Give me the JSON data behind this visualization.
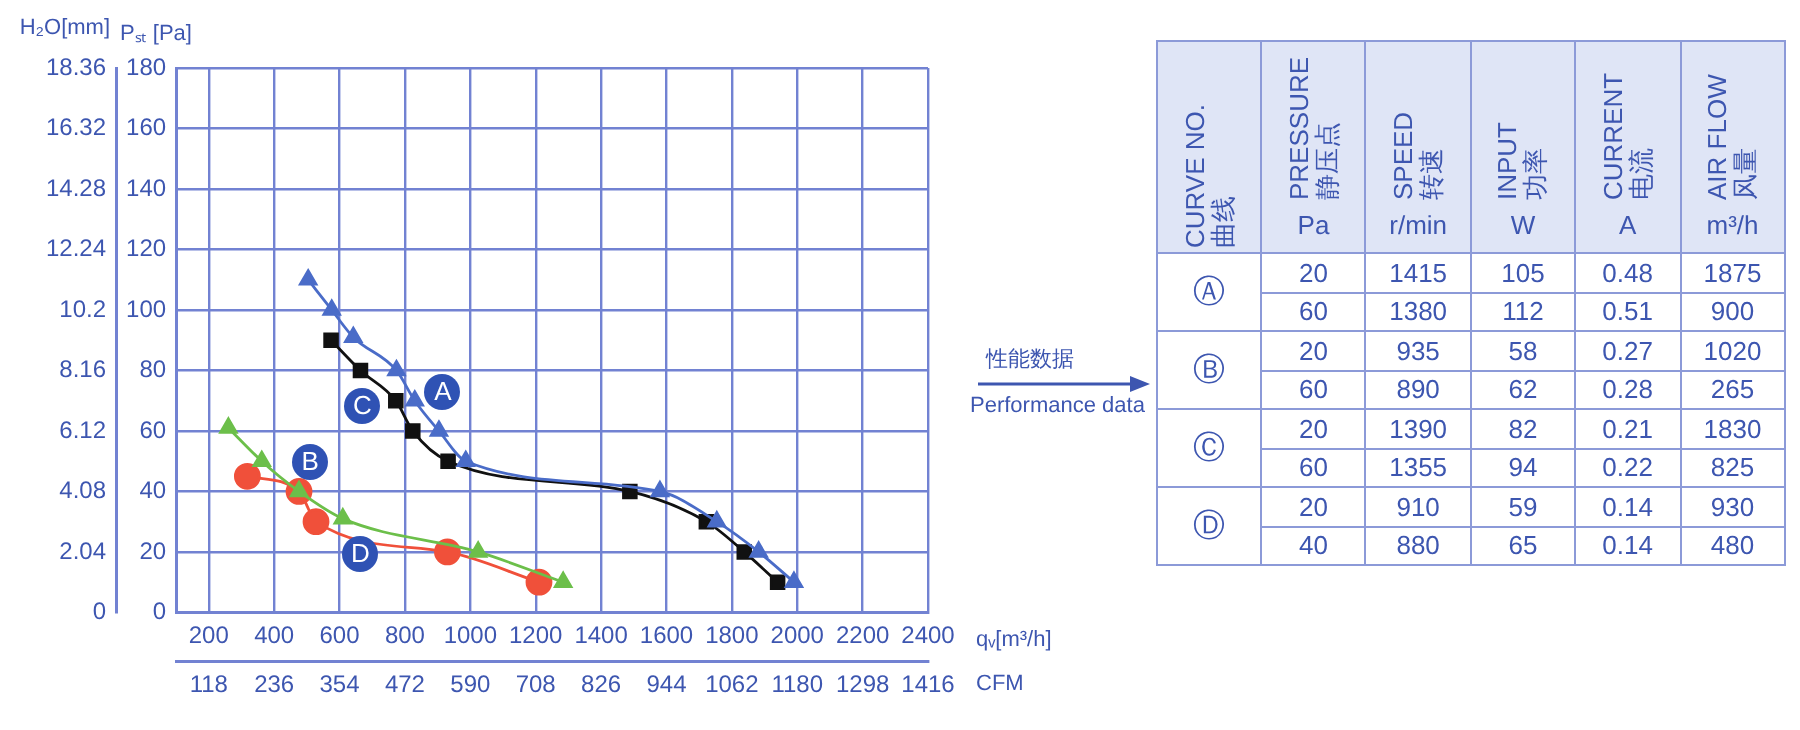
{
  "chart_data": [
    {
      "type": "line",
      "xlabel": "qᵥ[m³/h]",
      "x2label": "CFM",
      "ylabel": "Pₛₜ [Pa]",
      "y2label": "H₂O[mm]",
      "xlim": [
        100,
        2400
      ],
      "xticks": [
        200,
        400,
        600,
        800,
        1000,
        1200,
        1400,
        1600,
        1800,
        2000,
        2200,
        2400
      ],
      "x2lim": [
        59,
        1416
      ],
      "x2ticks": [
        118,
        236,
        354,
        472,
        590,
        708,
        826,
        944,
        1062,
        1180,
        1298,
        1416
      ],
      "ylim": [
        0,
        180
      ],
      "yticks": [
        0,
        20,
        40,
        60,
        80,
        100,
        120,
        140,
        160,
        180
      ],
      "y2lim": [
        0,
        18.36
      ],
      "y2ticks": [
        0,
        2.04,
        4.08,
        6.12,
        8.16,
        10.2,
        12.24,
        14.28,
        16.32,
        18.36
      ],
      "grid": true,
      "legend": false,
      "series": [
        {
          "color": "#4a6cc8",
          "marker": "triangle",
          "x": [
            504,
            576,
            642,
            774,
            830,
            904,
            986,
            1580,
            1754,
            1882,
            1990
          ],
          "values": [
            110,
            100,
            91,
            80,
            70,
            60,
            50,
            40,
            30,
            20,
            10
          ]
        },
        {
          "color": "#6cbf4a",
          "marker": "triangle",
          "x": [
            260,
            362,
            476,
            610,
            1024,
            1284
          ],
          "values": [
            61,
            50,
            40,
            31,
            20,
            10
          ]
        },
        {
          "color": "#111111",
          "marker": "square",
          "x": [
            574,
            664,
            772,
            824,
            932,
            1488,
            1722,
            1838,
            1940
          ],
          "values": [
            90,
            80,
            70,
            60,
            50,
            40,
            30,
            20,
            10
          ]
        },
        {
          "color": "#f0503a",
          "marker": "circle",
          "x": [
            318,
            476,
            528,
            930,
            1210
          ],
          "values": [
            45,
            40,
            30,
            20,
            10
          ]
        }
      ],
      "annotations": [
        {
          "text": "A",
          "x": 916,
          "y": 73
        },
        {
          "text": "B",
          "x": 510,
          "y": 50
        },
        {
          "text": "C",
          "x": 670,
          "y": 68
        },
        {
          "text": "D",
          "x": 664,
          "y": 19
        }
      ]
    },
    {
      "type": "other",
      "categories": [
        "CURVE NO.\n曲线",
        "PRESSURE\n静压点\nPa",
        "SPEED\n转速\nr/min",
        "INPUT\n功率\nW",
        "CURRENT\n电流\nA",
        "AIR FLOW\n风量\nm³/h"
      ],
      "cell_labels": [
        [
          "Ⓐ",
          "20",
          "1415",
          "105",
          "0.48",
          "1875"
        ],
        [
          null,
          "60",
          "1380",
          "112",
          "0.51",
          "900"
        ],
        [
          "Ⓑ",
          "20",
          "935",
          "58",
          "0.27",
          "1020"
        ],
        [
          null,
          "60",
          "890",
          "62",
          "0.28",
          "265"
        ],
        [
          "Ⓒ",
          "20",
          "1390",
          "82",
          "0.21",
          "1830"
        ],
        [
          null,
          "60",
          "1355",
          "94",
          "0.22",
          "825"
        ],
        [
          "Ⓓ",
          "20",
          "910",
          "59",
          "0.14",
          "930"
        ],
        [
          null,
          "40",
          "880",
          "65",
          "0.14",
          "480"
        ]
      ],
      "annotations": [
        "性能数据",
        "Performance data"
      ]
    }
  ]
}
